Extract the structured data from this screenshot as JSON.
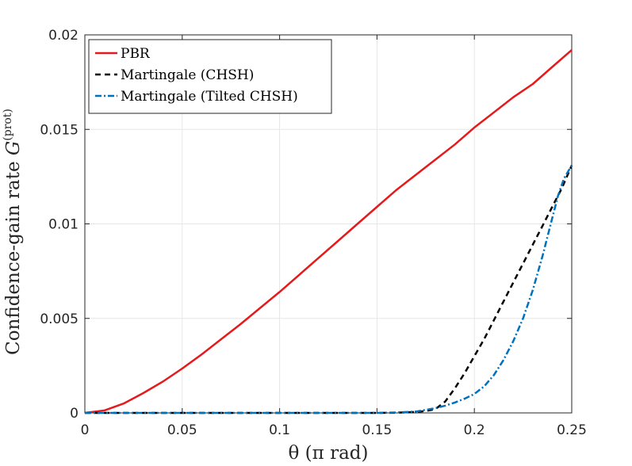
{
  "chart_data": {
    "type": "line",
    "xlabel": "θ (π rad)",
    "ylabel_main": "Confidence-gain rate ",
    "ylabel_symbol": "G",
    "ylabel_superscript": "(prot)",
    "xlim": [
      0,
      0.25
    ],
    "ylim": [
      0,
      0.02
    ],
    "xticks": [
      0,
      0.05,
      0.1,
      0.15,
      0.2,
      0.25
    ],
    "xtick_labels": [
      "0",
      "0.05",
      "0.1",
      "0.15",
      "0.2",
      "0.25"
    ],
    "yticks": [
      0,
      0.005,
      0.01,
      0.015,
      0.02
    ],
    "ytick_labels": [
      "0",
      "0.005",
      "0.01",
      "0.015",
      "0.02"
    ],
    "grid": true,
    "legend_position": "top-left",
    "series": [
      {
        "name": "PBR",
        "color": "#e41a1c",
        "style": "solid",
        "x": [
          0,
          0.01,
          0.02,
          0.03,
          0.04,
          0.05,
          0.06,
          0.07,
          0.08,
          0.09,
          0.1,
          0.11,
          0.12,
          0.13,
          0.14,
          0.15,
          0.16,
          0.17,
          0.18,
          0.19,
          0.2,
          0.21,
          0.22,
          0.23,
          0.24,
          0.25
        ],
        "y": [
          0,
          0.00013,
          0.0005,
          0.00105,
          0.00165,
          0.00235,
          0.0031,
          0.0039,
          0.0047,
          0.00555,
          0.0064,
          0.0073,
          0.0082,
          0.0091,
          0.01,
          0.0109,
          0.0118,
          0.0126,
          0.0134,
          0.0142,
          0.0151,
          0.0159,
          0.0167,
          0.0174,
          0.0183,
          0.0192
        ]
      },
      {
        "name": "Martingale (CHSH)",
        "color": "#000000",
        "style": "dashed",
        "x": [
          0,
          0.05,
          0.1,
          0.15,
          0.16,
          0.17,
          0.175,
          0.18,
          0.185,
          0.19,
          0.195,
          0.2,
          0.205,
          0.21,
          0.215,
          0.22,
          0.225,
          0.23,
          0.235,
          0.24,
          0.245,
          0.25
        ],
        "y": [
          0,
          0,
          0,
          0,
          1e-05,
          5e-05,
          0.0001,
          0.0002,
          0.0006,
          0.0013,
          0.0021,
          0.003,
          0.0039,
          0.0049,
          0.0059,
          0.0069,
          0.0079,
          0.0089,
          0.0099,
          0.0109,
          0.0119,
          0.0131
        ]
      },
      {
        "name": "Martingale (Tilted CHSH)",
        "color": "#0072bd",
        "style": "dashdot",
        "x": [
          0,
          0.05,
          0.1,
          0.15,
          0.16,
          0.17,
          0.18,
          0.185,
          0.19,
          0.195,
          0.2,
          0.205,
          0.21,
          0.215,
          0.22,
          0.225,
          0.23,
          0.235,
          0.24,
          0.243,
          0.246,
          0.25
        ],
        "y": [
          0,
          0,
          0,
          0,
          2e-05,
          7e-05,
          0.00025,
          0.00038,
          0.00055,
          0.00075,
          0.001,
          0.0014,
          0.002,
          0.0028,
          0.0038,
          0.005,
          0.0065,
          0.0083,
          0.0103,
          0.0115,
          0.0124,
          0.0131
        ]
      }
    ]
  }
}
